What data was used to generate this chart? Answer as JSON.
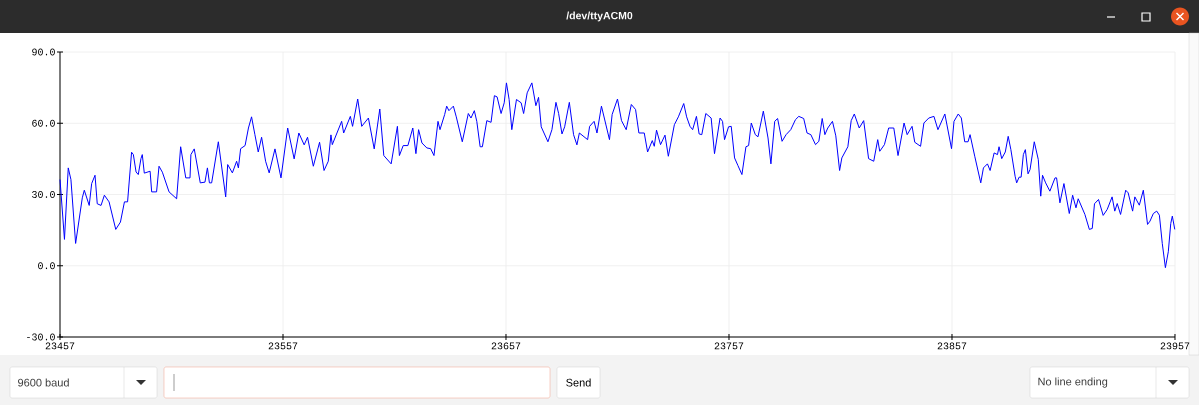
{
  "chart_data": {
    "type": "line",
    "title": "/dev/ttyACM0",
    "x": [
      23457,
      23459.0,
      23460.7,
      23461.9,
      23464.0,
      23467.0,
      23467.9,
      23470.1,
      23471.2,
      23472.7,
      23473.7,
      23475.4,
      23476.9,
      23479.0,
      23482.0,
      23484.1,
      23485.9,
      23487.3,
      23489.1,
      23489.9,
      23491.1,
      23492.1,
      23493.3,
      23493.9,
      23494.8,
      23497.4,
      23498.1,
      23500.3,
      23501.4,
      23502.9,
      23505.9,
      23509.3,
      23511.1,
      23513.4,
      23515.3,
      23515.7,
      23517.2,
      23519.9,
      23522.0,
      23523.1,
      23524.0,
      23525.0,
      23528.0,
      23531.3,
      23532.2,
      23534.3,
      23536.2,
      23537.0,
      23538.0,
      23540.0,
      23541.5,
      23542.9,
      23544.4,
      23545.9,
      23547.4,
      23549.2,
      23550.8,
      23553.4,
      23556.1,
      23559.1,
      23562.0,
      23564.1,
      23566.5,
      23568.0,
      23570.6,
      23573.4,
      23575.4,
      23577.3,
      23578.5,
      23579.1,
      23583.3,
      23584.2,
      23587.2,
      23588.2,
      23590.5,
      23592.3,
      23595.3,
      23597.9,
      23600.4,
      23602.2,
      23605.5,
      23608.3,
      23609.2,
      23610.9,
      23613.0,
      23615.2,
      23616.6,
      23617.8,
      23619.3,
      23621.5,
      23623.2,
      23624.7,
      23626.5,
      23627.4,
      23629.5,
      23630.4,
      23631.4,
      23633.4,
      23634.7,
      23637.4,
      23640.1,
      23641.3,
      23642.8,
      23643.9,
      23645.4,
      23646.4,
      23648.4,
      23650.3,
      23651.8,
      23653.0,
      23654.8,
      23656.2,
      23657.2,
      23658.4,
      23659.6,
      23661.7,
      23663.8,
      23664.9,
      23666.5,
      23668.6,
      23670.4,
      23671.6,
      23672.8,
      23675.8,
      23677.6,
      23679.4,
      23680.6,
      23682.1,
      23683.3,
      23685.4,
      23687.3,
      23688.8,
      23689.9,
      23693.6,
      23694.5,
      23696.5,
      23697.8,
      23699.8,
      23703.4,
      23704.6,
      23707.0,
      23708.8,
      23710.9,
      23713.2,
      23715.1,
      23716.6,
      23719.0,
      23720.5,
      23722.6,
      23723.5,
      23724.5,
      23726.3,
      23728.3,
      23729.8,
      23732.5,
      23734.3,
      23736.7,
      23738.0,
      23739.5,
      23740.7,
      23742.4,
      23743.6,
      23744.8,
      23746.6,
      23749.0,
      23750.5,
      23753.0,
      23754.1,
      23755.0,
      23756.8,
      23758.0,
      23759.5,
      23761.0,
      23762.8,
      23764.6,
      23765.8,
      23767.0,
      23768.8,
      23770.0,
      23772.4,
      23774.5,
      23775.8,
      23777.5,
      23778.8,
      23780.8,
      23782.6,
      23784.7,
      23786.8,
      23788.3,
      23790.5,
      23792.0,
      23793.7,
      23795.8,
      23797.3,
      23798.8,
      23800.0,
      23801.3,
      23803.4,
      23804.9,
      23806.6,
      23807.6,
      23810.3,
      23811.8,
      23813.2,
      23815.4,
      23817.4,
      23819.6,
      23821.9,
      23823.7,
      23824.6,
      23826.7,
      23828.6,
      23830.9,
      23832.8,
      23835.5,
      23836.9,
      23839.1,
      23840.3,
      23842.9,
      23844.4,
      23846.6,
      23848.9,
      23850.7,
      23853.8,
      23856.8,
      23857.9,
      23859.8,
      23861.2,
      23862.7,
      23864.2,
      23865.1,
      23867.2,
      23869.9,
      23871.1,
      23872.9,
      23874.1,
      23875.9,
      23877.4,
      23878.1,
      23879.3,
      23880.9,
      23882.2,
      23883.4,
      23885.3,
      23886.0,
      23887.1,
      23888.0,
      23889.0,
      23889.9,
      23891.1,
      23892.0,
      23893.9,
      23895.7,
      23896.8,
      23897.6,
      23899.0,
      23900.9,
      23903.2,
      23903.9,
      23905.4,
      23907.2,
      23909.6,
      23911.1,
      23912.6,
      23913.6,
      23916.6,
      23918.6,
      23919.9,
      23920.9,
      23922.7,
      23924.8,
      23926.6,
      23928.8,
      23930.0,
      23931.1,
      23932.6,
      23934.9,
      23936.0,
      23938.0,
      23939.0,
      23941.0,
      23942.8,
      23944.7,
      23945.8,
      23947.3,
      23948.8,
      23950.0,
      23951.3,
      23952.7,
      23954.0,
      23955.1,
      23955.8,
      23956.9
    ],
    "series": [
      {
        "color": "#0000ff",
        "values": [
          36.3,
          11.1,
          41.2,
          36.3,
          9.4,
          28.6,
          31.8,
          25.4,
          34.6,
          38.1,
          26.1,
          25.4,
          29.7,
          26.9,
          15.3,
          18.4,
          26.9,
          26.9,
          47.8,
          46.8,
          39.5,
          38.4,
          45.1,
          46.8,
          39.0,
          39.8,
          31.1,
          31.1,
          41.9,
          39.4,
          31.1,
          28.2,
          50.1,
          37.0,
          37.0,
          46.8,
          49.2,
          34.9,
          35.2,
          41.2,
          34.9,
          34.9,
          52.2,
          29.0,
          42.6,
          39.1,
          44.0,
          41.2,
          49.3,
          50.6,
          58.0,
          62.7,
          55.2,
          47.9,
          54.1,
          44.0,
          39.1,
          49.2,
          37.0,
          58.0,
          45.0,
          55.9,
          50.9,
          54.1,
          41.9,
          52.0,
          40.1,
          44.0,
          55.1,
          51.0,
          60.8,
          55.9,
          62.9,
          58.7,
          70.2,
          58.7,
          62.2,
          49.2,
          66.0,
          46.4,
          42.9,
          58.7,
          46.4,
          50.6,
          50.6,
          58.0,
          47.2,
          57.3,
          51.7,
          49.6,
          49.3,
          46.4,
          60.8,
          57.3,
          63.7,
          67.2,
          65.3,
          67.2,
          62.7,
          52.2,
          64.1,
          62.2,
          65.3,
          60.8,
          50.1,
          50.1,
          61.1,
          60.4,
          71.6,
          71.1,
          64.1,
          68.6,
          77.0,
          70.0,
          57.3,
          70.0,
          68.6,
          64.1,
          72.8,
          77.0,
          67.4,
          70.9,
          58.5,
          52.2,
          57.3,
          68.8,
          64.1,
          55.5,
          58.5,
          68.8,
          55.2,
          50.9,
          55.9,
          53.1,
          58.7,
          60.8,
          55.9,
          67.2,
          53.1,
          63.7,
          70.2,
          61.1,
          57.3,
          67.9,
          65.8,
          55.9,
          55.9,
          47.9,
          52.7,
          50.3,
          57.1,
          51.0,
          55.0,
          46.1,
          59.4,
          62.7,
          68.3,
          62.7,
          58.7,
          57.3,
          62.9,
          55.5,
          55.2,
          64.1,
          62.2,
          47.2,
          62.2,
          60.8,
          53.1,
          58.5,
          58.7,
          45.4,
          42.2,
          38.4,
          50.1,
          50.6,
          60.1,
          55.2,
          54.3,
          65.1,
          53.8,
          42.9,
          60.8,
          62.0,
          52.4,
          55.2,
          57.3,
          61.5,
          62.9,
          62.0,
          55.9,
          55.2,
          51.0,
          52.4,
          62.0,
          55.2,
          58.0,
          60.8,
          54.7,
          40.1,
          45.4,
          50.1,
          61.1,
          63.9,
          58.0,
          61.1,
          45.1,
          44.0,
          53.1,
          48.2,
          51.0,
          58.0,
          58.0,
          46.4,
          60.1,
          55.2,
          58.7,
          52.0,
          50.3,
          60.1,
          62.2,
          62.9,
          57.3,
          63.9,
          49.3,
          60.8,
          63.9,
          62.2,
          52.2,
          52.2,
          55.2,
          46.1,
          34.9,
          41.2,
          42.9,
          40.1,
          47.5,
          46.8,
          50.1,
          45.1,
          47.9,
          54.5,
          48.9,
          37.7,
          34.9,
          37.3,
          37.3,
          46.8,
          48.9,
          38.7,
          40.5,
          52.2,
          44.7,
          29.3,
          38.1,
          34.9,
          31.4,
          37.0,
          37.0,
          26.5,
          34.6,
          22.0,
          29.7,
          24.4,
          28.2,
          21.6,
          15.3,
          15.7,
          26.1,
          27.9,
          21.2,
          23.7,
          29.0,
          23.0,
          26.2,
          21.6,
          31.8,
          30.7,
          23.0,
          29.0,
          25.5,
          31.8,
          17.4,
          18.8,
          22.0,
          23.0,
          21.3,
          9.4,
          -0.8,
          5.9,
          17.8,
          20.9,
          15.3
        ]
      }
    ],
    "xlim": [
      23457,
      23957
    ],
    "ylim": [
      -30,
      90
    ],
    "xticks": [
      23457,
      23557,
      23657,
      23757,
      23857,
      23957
    ],
    "yticks": [
      {
        "value": -30,
        "label": "-30.0"
      },
      {
        "value": 0,
        "label": "0.0"
      },
      {
        "value": 30,
        "label": "30.0"
      },
      {
        "value": 60,
        "label": "60.0"
      },
      {
        "value": 90,
        "label": "90.0"
      }
    ],
    "grid": true,
    "marker": "none",
    "line_style": "solid",
    "annotations": [
      "9600 baud",
      "Send",
      "No line ending"
    ]
  }
}
